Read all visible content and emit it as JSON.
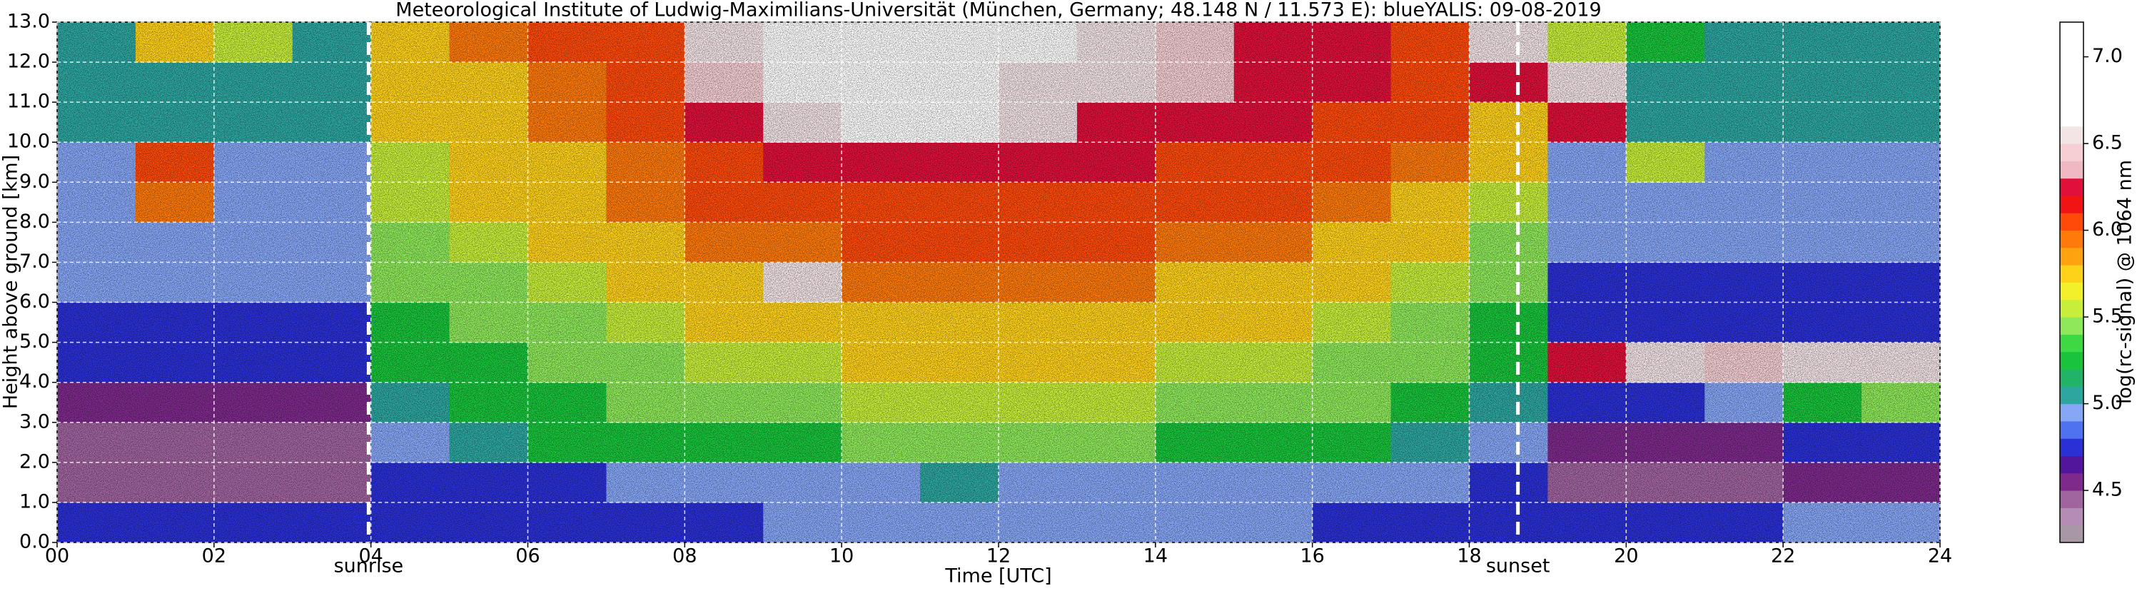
{
  "chart_data": {
    "type": "heatmap",
    "title": "Meteorological Institute of Ludwig-Maximilians-Universität (München, Germany; 48.148 N / 11.573 E):    blueYALIS: 09-08-2019",
    "xlabel": "Time [UTC]",
    "ylabel": "Height above ground [km]",
    "colorbar_label": "log(rc-signal) @ 1064 nm",
    "x": [
      0.5,
      1.5,
      2.5,
      3.5,
      4.5,
      5.5,
      6.5,
      7.5,
      8.5,
      9.5,
      10.5,
      11.5,
      12.5,
      13.5,
      14.5,
      15.5,
      16.5,
      17.5,
      18.5,
      19.5,
      20.5,
      21.5,
      22.5,
      23.5
    ],
    "y": [
      0.5,
      1.5,
      2.5,
      3.5,
      4.5,
      5.5,
      6.5,
      7.5,
      8.5,
      9.5,
      10.5,
      11.5,
      12.5
    ],
    "z": [
      [
        4.7,
        4.7,
        4.7,
        4.7,
        4.7,
        4.7,
        4.7,
        4.7,
        4.8,
        4.9,
        5.0,
        5.0,
        4.9,
        4.9,
        4.9,
        4.9,
        4.8,
        4.8,
        4.8,
        4.8,
        4.8,
        4.8,
        4.9,
        4.9
      ],
      [
        4.5,
        4.5,
        4.5,
        4.5,
        4.8,
        4.8,
        4.8,
        4.9,
        4.9,
        5.0,
        5.0,
        5.1,
        5.0,
        5.0,
        5.0,
        5.0,
        4.9,
        4.9,
        4.8,
        4.5,
        4.5,
        4.5,
        4.6,
        4.6
      ],
      [
        4.4,
        4.4,
        4.4,
        4.4,
        5.0,
        5.1,
        5.2,
        5.2,
        5.3,
        5.3,
        5.4,
        5.4,
        5.4,
        5.4,
        5.3,
        5.3,
        5.2,
        5.1,
        5.0,
        4.6,
        4.6,
        4.6,
        4.7,
        4.7
      ],
      [
        4.6,
        4.6,
        4.6,
        4.6,
        5.1,
        5.2,
        5.3,
        5.4,
        5.5,
        5.5,
        5.6,
        5.6,
        5.6,
        5.6,
        5.5,
        5.5,
        5.4,
        5.3,
        5.1,
        4.8,
        4.8,
        4.9,
        5.3,
        5.5
      ],
      [
        4.7,
        4.7,
        4.7,
        4.7,
        5.2,
        5.3,
        5.4,
        5.5,
        5.6,
        5.6,
        5.7,
        5.7,
        5.7,
        5.7,
        5.6,
        5.6,
        5.5,
        5.4,
        5.2,
        6.3,
        6.5,
        6.4,
        6.5,
        6.6
      ],
      [
        4.8,
        4.8,
        4.8,
        4.8,
        5.3,
        5.4,
        5.5,
        5.6,
        5.7,
        5.7,
        5.8,
        5.8,
        5.8,
        5.8,
        5.7,
        5.7,
        5.6,
        5.5,
        5.3,
        4.7,
        4.7,
        4.7,
        4.7,
        4.7
      ],
      [
        4.9,
        4.9,
        4.9,
        4.9,
        5.4,
        5.5,
        5.6,
        5.7,
        5.8,
        6.6,
        5.9,
        5.9,
        5.9,
        5.9,
        5.8,
        5.8,
        5.7,
        5.6,
        5.4,
        4.8,
        4.8,
        4.8,
        4.8,
        4.8
      ],
      [
        4.95,
        4.95,
        4.95,
        4.95,
        5.5,
        5.6,
        5.7,
        5.8,
        5.9,
        5.9,
        6.0,
        6.0,
        6.0,
        6.0,
        5.9,
        5.9,
        5.8,
        5.7,
        5.5,
        4.9,
        4.9,
        4.9,
        4.9,
        4.9
      ],
      [
        5.0,
        5.9,
        5.0,
        5.0,
        5.6,
        5.7,
        5.8,
        5.9,
        6.0,
        6.0,
        6.1,
        6.1,
        6.1,
        6.1,
        6.0,
        6.0,
        5.9,
        5.8,
        5.6,
        4.95,
        4.95,
        4.95,
        4.95,
        4.95
      ],
      [
        5.0,
        6.1,
        5.0,
        5.0,
        5.6,
        5.7,
        5.8,
        5.9,
        6.1,
        6.2,
        6.3,
        6.3,
        6.3,
        6.2,
        6.1,
        6.1,
        6.0,
        5.9,
        5.7,
        5.0,
        5.6,
        5.0,
        5.0,
        5.0
      ],
      [
        5.05,
        5.1,
        5.05,
        5.05,
        5.7,
        5.8,
        5.9,
        6.0,
        6.3,
        6.6,
        6.7,
        6.7,
        6.5,
        6.3,
        6.2,
        6.2,
        6.1,
        6.0,
        5.8,
        6.3,
        5.1,
        5.05,
        5.05,
        5.05
      ],
      [
        5.1,
        5.1,
        5.1,
        5.1,
        5.7,
        5.8,
        5.9,
        6.0,
        6.4,
        6.7,
        6.8,
        6.8,
        6.6,
        6.5,
        6.4,
        6.3,
        6.2,
        6.0,
        6.3,
        6.5,
        5.1,
        5.1,
        5.1,
        5.1
      ],
      [
        5.1,
        5.7,
        5.6,
        5.1,
        5.8,
        5.9,
        6.0,
        6.1,
        6.6,
        6.8,
        6.9,
        6.9,
        6.7,
        6.6,
        6.4,
        6.3,
        6.2,
        6.1,
        6.5,
        5.6,
        5.2,
        5.1,
        5.1,
        5.1
      ]
    ],
    "xlim": [
      0,
      24
    ],
    "xticks": [
      {
        "value": 0,
        "label": "00"
      },
      {
        "value": 2,
        "label": "02"
      },
      {
        "value": 4,
        "label": "04"
      },
      {
        "value": 6,
        "label": "06"
      },
      {
        "value": 8,
        "label": "08"
      },
      {
        "value": 10,
        "label": "10"
      },
      {
        "value": 12,
        "label": "12"
      },
      {
        "value": 14,
        "label": "14"
      },
      {
        "value": 16,
        "label": "16"
      },
      {
        "value": 18,
        "label": "18"
      },
      {
        "value": 20,
        "label": "20"
      },
      {
        "value": 22,
        "label": "22"
      },
      {
        "value": 24,
        "label": "24"
      }
    ],
    "ylim": [
      0,
      13
    ],
    "yticks": [
      {
        "value": 0,
        "label": "0.0"
      },
      {
        "value": 1,
        "label": "1.0"
      },
      {
        "value": 2,
        "label": "2.0"
      },
      {
        "value": 3,
        "label": "3.0"
      },
      {
        "value": 4,
        "label": "4.0"
      },
      {
        "value": 5,
        "label": "5.0"
      },
      {
        "value": 6,
        "label": "6.0"
      },
      {
        "value": 7,
        "label": "7.0"
      },
      {
        "value": 8,
        "label": "8.0"
      },
      {
        "value": 9,
        "label": "9.0"
      },
      {
        "value": 10,
        "label": "10.0"
      },
      {
        "value": 11,
        "label": "11.0"
      },
      {
        "value": 12,
        "label": "12.0"
      },
      {
        "value": 13,
        "label": "13.0"
      }
    ],
    "clim": [
      4.2,
      7.2
    ],
    "cticks": [
      4.5,
      {
        "value": 5,
        "label": "5.0"
      },
      5.5,
      {
        "value": 6,
        "label": "6.0"
      },
      6.5,
      {
        "value": 7,
        "label": "7.0"
      }
    ],
    "colors": [
      "#a898a6",
      "#b58cb3",
      "#a0649f",
      "#7e2a8c",
      "#52169c",
      "#2a30d6",
      "#4f72f0",
      "#86a6f6",
      "#2ea6a0",
      "#22b466",
      "#19c43c",
      "#3fd845",
      "#8ee85a",
      "#c6ee3a",
      "#f2f02a",
      "#ffd21a",
      "#ffa410",
      "#ff7a0a",
      "#ff4a0a",
      "#f01414",
      "#e0103a",
      "#f0b8c0",
      "#f5cfd3",
      "#f3e4e6",
      "#ffffff",
      "#ffffff",
      "#ffffff",
      "#ffffff",
      "#ffffff",
      "#ffffff"
    ],
    "grid": true,
    "grid_color": "#ffffff",
    "annotations": [
      {
        "label": "sunrise",
        "x": 3.97
      },
      {
        "label": "sunset",
        "x": 18.62
      }
    ]
  }
}
